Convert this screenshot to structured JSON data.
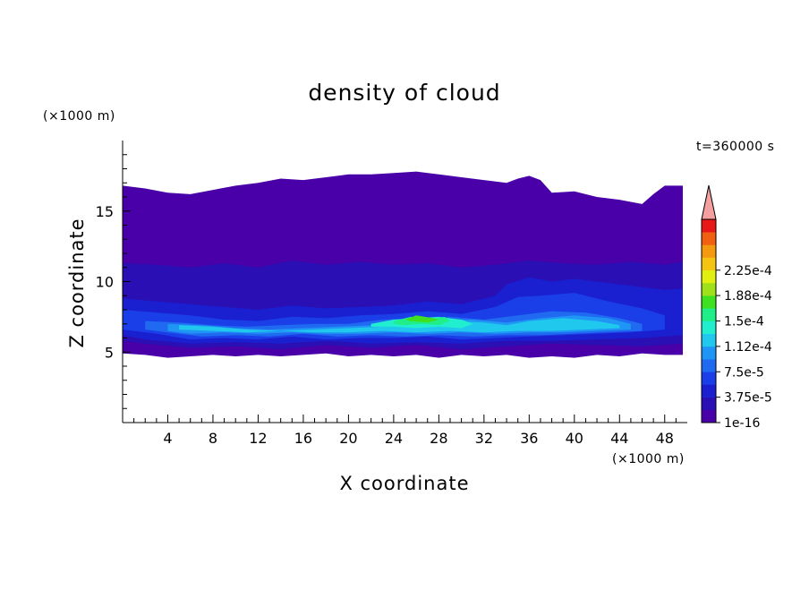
{
  "chart_data": {
    "type": "heatmap",
    "title": "density of cloud",
    "xlabel": "X coordinate",
    "ylabel": "Z coordinate",
    "x_unit": "(×1000 m)",
    "y_unit": "(×1000 m)",
    "time_label": "t=360000 s",
    "xlim": [
      0,
      50
    ],
    "ylim": [
      0,
      20
    ],
    "x_ticks": [
      4,
      8,
      12,
      16,
      20,
      24,
      28,
      32,
      36,
      40,
      44,
      48
    ],
    "y_ticks": [
      5,
      10,
      15
    ],
    "colorbar": {
      "labels": [
        "1e-16",
        "3.75e-5",
        "7.5e-5",
        "1.12e-4",
        "1.5e-4",
        "1.88e-4",
        "2.25e-4"
      ],
      "values": [
        1e-16,
        3.75e-05,
        7.5e-05,
        0.000112,
        0.00015,
        0.000188,
        0.000225
      ],
      "levels": [
        "#4a00a8",
        "#2a0fb4",
        "#1a1fd0",
        "#1a3ee8",
        "#1f6af0",
        "#1f95f5",
        "#20c8ee",
        "#20eecf",
        "#20ee88",
        "#3fe020",
        "#9ee01a",
        "#e0ee10",
        "#f4c410",
        "#f49a10",
        "#f06010",
        "#e81818"
      ],
      "extend_color": "#f4a0a0"
    },
    "regions": [
      {
        "level": 0,
        "x": [
          0,
          2,
          4,
          6,
          8,
          10,
          12,
          14,
          16,
          18,
          20,
          22,
          24,
          26,
          28,
          30,
          32,
          34,
          35,
          36,
          37,
          38,
          40,
          42,
          44,
          46,
          47,
          48,
          49.6,
          49.6,
          48,
          46,
          44,
          42,
          40,
          38,
          36,
          34,
          32,
          30,
          28,
          26,
          24,
          22,
          20,
          18,
          16,
          14,
          12,
          10,
          8,
          6,
          4,
          2,
          0
        ],
        "z": [
          16.8,
          16.6,
          16.3,
          16.2,
          16.5,
          16.8,
          17.0,
          17.3,
          17.2,
          17.4,
          17.6,
          17.6,
          17.7,
          17.8,
          17.6,
          17.4,
          17.2,
          17.0,
          17.3,
          17.5,
          17.2,
          16.3,
          16.4,
          16.0,
          15.8,
          15.5,
          16.2,
          16.8,
          16.8,
          4.8,
          4.8,
          4.9,
          4.7,
          4.8,
          4.6,
          4.7,
          4.6,
          4.8,
          4.7,
          4.8,
          4.6,
          4.8,
          4.7,
          4.8,
          4.7,
          4.9,
          4.8,
          4.7,
          4.8,
          4.7,
          4.8,
          4.7,
          4.6,
          4.8,
          4.9
        ]
      },
      {
        "level": 1,
        "x": [
          0,
          3,
          6,
          9,
          12,
          15,
          18,
          21,
          24,
          27,
          30,
          33,
          36,
          39,
          42,
          45,
          48,
          49.6,
          49.6,
          46,
          42,
          38,
          34,
          30,
          26,
          22,
          18,
          14,
          10,
          6,
          2,
          0
        ],
        "z": [
          11.3,
          11.2,
          11.0,
          11.3,
          11.0,
          11.5,
          11.2,
          11.4,
          11.2,
          11.3,
          11.0,
          11.2,
          11.5,
          11.3,
          11.2,
          11.4,
          11.2,
          11.4,
          5.6,
          5.4,
          5.5,
          5.6,
          5.4,
          5.2,
          5.5,
          5.3,
          5.5,
          5.2,
          5.4,
          5.3,
          5.6,
          5.8
        ]
      },
      {
        "level": 2,
        "x": [
          0,
          3,
          6,
          9,
          12,
          15,
          18,
          21,
          24,
          27,
          30,
          33,
          34,
          36,
          38,
          40,
          42,
          44,
          46,
          48,
          49.6,
          49.6,
          46,
          42,
          38,
          34,
          30,
          26,
          22,
          18,
          14,
          10,
          6,
          2,
          0
        ],
        "z": [
          8.8,
          8.6,
          8.4,
          8.2,
          8.0,
          8.3,
          8.1,
          8.2,
          8.3,
          8.6,
          8.4,
          9.0,
          9.8,
          10.3,
          10.0,
          10.2,
          10.0,
          9.8,
          9.6,
          9.4,
          9.5,
          6.2,
          6.0,
          5.9,
          5.8,
          5.8,
          5.6,
          5.7,
          5.6,
          5.8,
          5.6,
          5.7,
          5.6,
          5.9,
          6.2
        ]
      },
      {
        "level": 3,
        "x": [
          0,
          3,
          6,
          9,
          12,
          15,
          18,
          21,
          24,
          27,
          30,
          33,
          35,
          37,
          40,
          43,
          46,
          48,
          48,
          45,
          42,
          39,
          36,
          33,
          30,
          27,
          24,
          21,
          18,
          15,
          12,
          9,
          6,
          3,
          0
        ],
        "z": [
          8.0,
          7.8,
          7.6,
          7.3,
          7.2,
          7.5,
          7.4,
          7.6,
          7.7,
          7.9,
          7.7,
          8.2,
          8.9,
          9.0,
          9.2,
          8.6,
          8.1,
          7.6,
          6.6,
          6.4,
          6.3,
          6.2,
          6.1,
          6.0,
          5.9,
          6.1,
          6.0,
          6.0,
          5.9,
          6.1,
          5.9,
          6.0,
          5.9,
          6.3,
          6.6
        ]
      },
      {
        "level": 4,
        "x": [
          2,
          5,
          8,
          11,
          14,
          17,
          20,
          23,
          26,
          29,
          32,
          35,
          38,
          41,
          44,
          46,
          46,
          43,
          40,
          37,
          34,
          31,
          28,
          25,
          22,
          19,
          16,
          13,
          10,
          7,
          4,
          2
        ],
        "z": [
          7.2,
          7.1,
          6.9,
          6.8,
          6.9,
          7.0,
          7.0,
          7.3,
          7.4,
          7.5,
          7.3,
          7.6,
          7.9,
          7.8,
          7.4,
          7.0,
          6.5,
          6.4,
          6.3,
          6.2,
          6.2,
          6.1,
          6.2,
          6.1,
          6.2,
          6.1,
          6.3,
          6.1,
          6.2,
          6.1,
          6.4,
          6.6
        ]
      },
      {
        "level": 5,
        "x": [
          4,
          7,
          10,
          13,
          16,
          19,
          22,
          25,
          28,
          31,
          34,
          37,
          40,
          43,
          45,
          45,
          42,
          39,
          36,
          33,
          30,
          27,
          24,
          21,
          18,
          15,
          12,
          9,
          6,
          4
        ],
        "z": [
          7.0,
          6.9,
          6.7,
          6.6,
          6.7,
          6.8,
          6.9,
          7.2,
          7.3,
          7.3,
          7.1,
          7.4,
          7.6,
          7.4,
          7.0,
          6.6,
          6.5,
          6.4,
          6.4,
          6.3,
          6.4,
          6.3,
          6.4,
          6.3,
          6.3,
          6.4,
          6.3,
          6.4,
          6.3,
          6.5
        ]
      },
      {
        "level": 6,
        "x": [
          5,
          8,
          11,
          14,
          17,
          20,
          23,
          26,
          29,
          32,
          34,
          36,
          39,
          42,
          44,
          44,
          41,
          38,
          35,
          32,
          29,
          26,
          23,
          20,
          17,
          14,
          11,
          8,
          5
        ],
        "z": [
          6.9,
          6.8,
          6.6,
          6.5,
          6.6,
          6.7,
          6.8,
          7.1,
          7.2,
          7.1,
          6.9,
          7.2,
          7.4,
          7.2,
          6.9,
          6.7,
          6.6,
          6.5,
          6.5,
          6.4,
          6.5,
          6.4,
          6.5,
          6.4,
          6.4,
          6.5,
          6.4,
          6.5,
          6.6
        ]
      },
      {
        "level": 7,
        "x": [
          22,
          24,
          26,
          28,
          30,
          31,
          30,
          28,
          26,
          24,
          22
        ],
        "z": [
          7.0,
          7.3,
          7.4,
          7.5,
          7.3,
          7.0,
          6.7,
          6.8,
          6.7,
          6.8,
          6.8
        ]
      },
      {
        "level": 8,
        "x": [
          24,
          25.5,
          27,
          28.5,
          29,
          28,
          26.5,
          25,
          24
        ],
        "z": [
          7.2,
          7.5,
          7.3,
          7.5,
          7.2,
          6.9,
          7.0,
          6.9,
          7.0
        ]
      },
      {
        "level": 9,
        "x": [
          25,
          26,
          27.5,
          28,
          27,
          25.5,
          25
        ],
        "z": [
          7.3,
          7.6,
          7.4,
          7.3,
          7.1,
          7.2,
          7.3
        ]
      }
    ]
  }
}
